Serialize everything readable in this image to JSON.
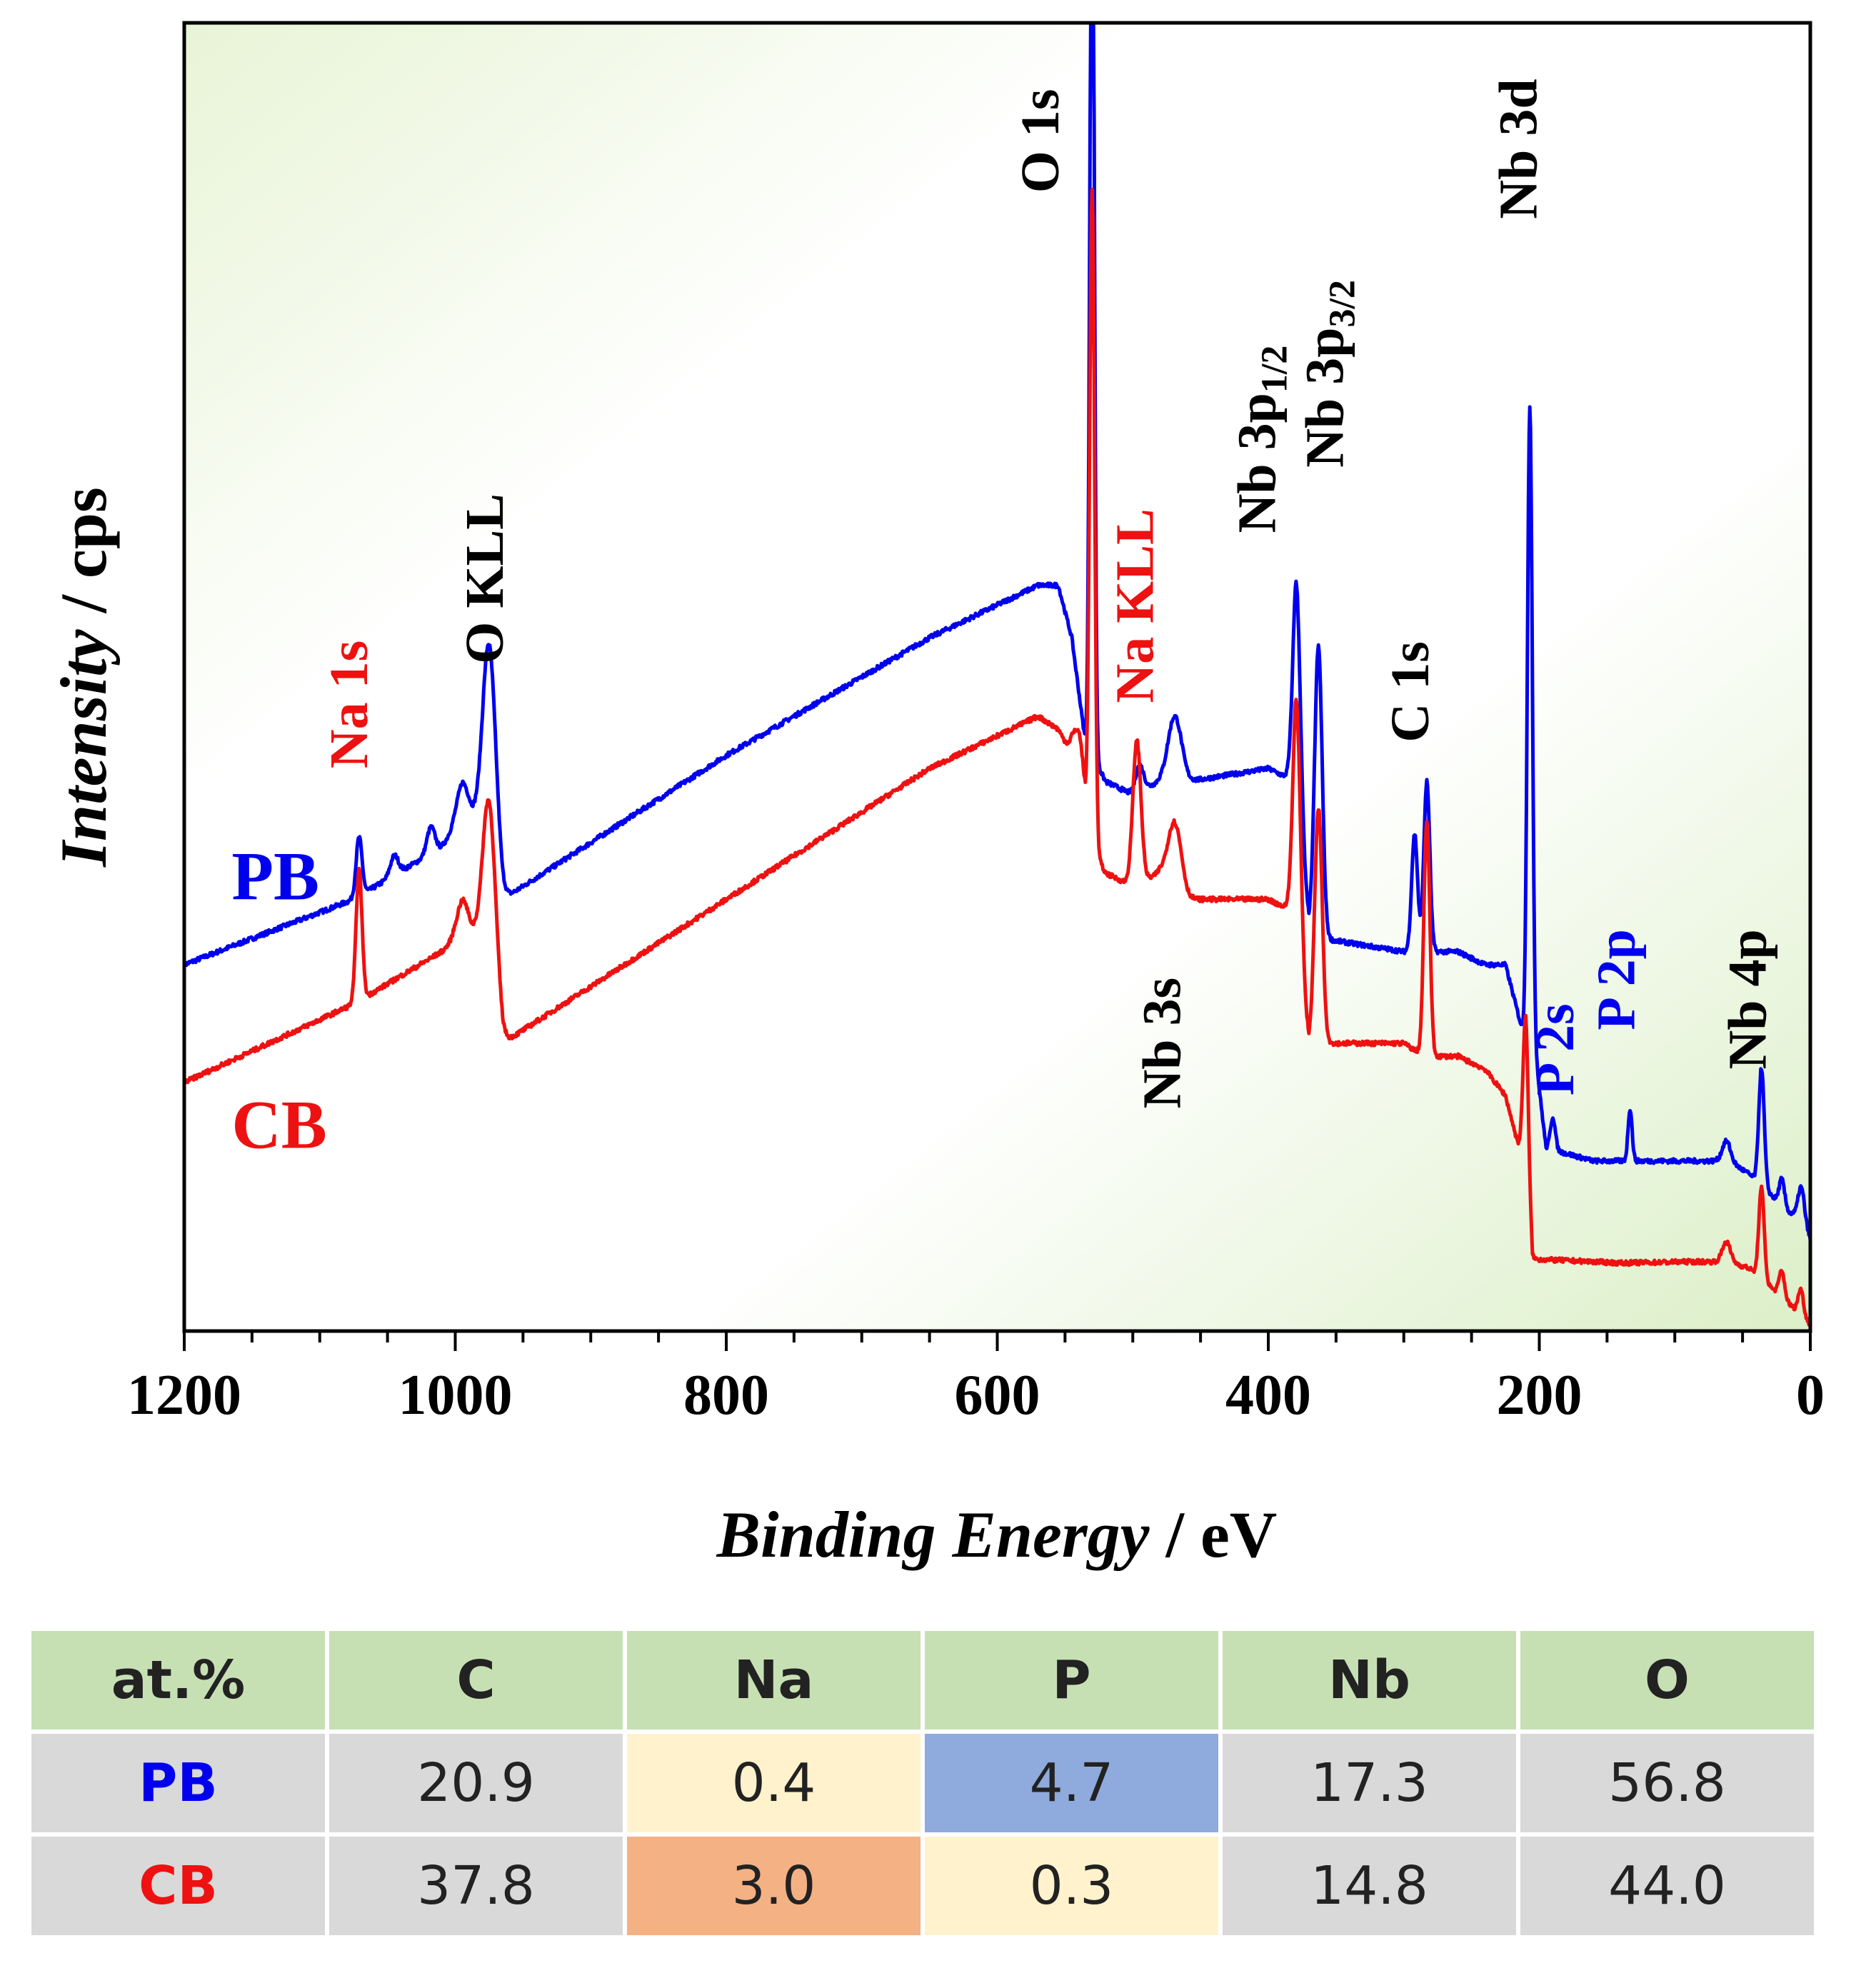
{
  "chart_data": {
    "type": "line",
    "xlabel_bold_italic": "Binding Energy",
    "xlabel_unit": " / eV",
    "ylabel_italic": "Intensity",
    "ylabel_unit": " / cps",
    "xlim": [
      1200,
      0
    ],
    "ylim": [
      0,
      100
    ],
    "x_ticks": [
      1200,
      1000,
      800,
      600,
      400,
      200,
      0
    ],
    "x_tick_labels": [
      "1200",
      "1000",
      "800",
      "600",
      "400",
      "200",
      "0"
    ],
    "colors": {
      "PB": "#0000ee",
      "CB": "#ee1111",
      "black": "#000000"
    },
    "series": [
      {
        "name": "PB",
        "color": "#0000ee",
        "baseline": [
          [
            1200,
            28
          ],
          [
            1075,
            33
          ],
          [
            1010,
            37
          ],
          [
            995,
            39
          ],
          [
            985,
            38
          ],
          [
            965,
            33
          ],
          [
            800,
            44
          ],
          [
            650,
            53
          ],
          [
            570,
            57
          ],
          [
            555,
            57
          ],
          [
            545,
            53
          ],
          [
            535,
            45
          ],
          [
            520,
            42
          ],
          [
            500,
            41
          ],
          [
            480,
            42
          ],
          [
            460,
            42
          ],
          [
            400,
            43
          ],
          [
            380,
            42
          ],
          [
            370,
            31
          ],
          [
            360,
            30
          ],
          [
            300,
            29
          ],
          [
            260,
            29
          ],
          [
            240,
            28
          ],
          [
            225,
            28
          ],
          [
            215,
            24
          ],
          [
            210,
            22
          ],
          [
            205,
            23
          ],
          [
            195,
            14
          ],
          [
            160,
            13
          ],
          [
            140,
            13
          ],
          [
            90,
            13
          ],
          [
            70,
            13
          ],
          [
            60,
            13
          ],
          [
            45,
            12
          ],
          [
            35,
            11
          ],
          [
            25,
            10
          ],
          [
            15,
            9
          ],
          [
            5,
            9
          ],
          [
            0,
            7
          ]
        ],
        "peaks": [
          {
            "x": 1071,
            "h": 4.5,
            "w": 2.2
          },
          {
            "x": 1045,
            "h": 1.5,
            "w": 3
          },
          {
            "x": 1018,
            "h": 2,
            "w": 3
          },
          {
            "x": 994,
            "h": 3,
            "w": 5
          },
          {
            "x": 975,
            "h": 17,
            "w": 5
          },
          {
            "x": 495,
            "h": 2,
            "w": 3
          },
          {
            "x": 469,
            "h": 5,
            "w": 5
          },
          {
            "x": 530,
            "h": 75,
            "w": 1.6
          },
          {
            "x": 379,
            "h": 16,
            "w": 2.8
          },
          {
            "x": 363,
            "h": 22,
            "w": 2.8
          },
          {
            "x": 292,
            "h": 9,
            "w": 2.2
          },
          {
            "x": 283,
            "h": 13,
            "w": 2.2
          },
          {
            "x": 207,
            "h": 48,
            "w": 1.8
          },
          {
            "x": 190,
            "h": 2.5,
            "w": 1.8
          },
          {
            "x": 133,
            "h": 4,
            "w": 1.5
          },
          {
            "x": 62,
            "h": 1.5,
            "w": 3
          },
          {
            "x": 36,
            "h": 9,
            "w": 2
          },
          {
            "x": 21,
            "h": 2,
            "w": 2
          },
          {
            "x": 7,
            "h": 2,
            "w": 2
          }
        ]
      },
      {
        "name": "CB",
        "color": "#ee1111",
        "baseline": [
          [
            1200,
            19
          ],
          [
            1075,
            25
          ],
          [
            1010,
            29
          ],
          [
            995,
            30
          ],
          [
            985,
            29
          ],
          [
            965,
            22
          ],
          [
            800,
            33
          ],
          [
            650,
            43
          ],
          [
            570,
            47
          ],
          [
            555,
            46
          ],
          [
            545,
            44
          ],
          [
            535,
            38
          ],
          [
            520,
            35
          ],
          [
            500,
            34
          ],
          [
            480,
            35
          ],
          [
            460,
            33
          ],
          [
            400,
            33
          ],
          [
            380,
            32
          ],
          [
            370,
            22
          ],
          [
            360,
            22
          ],
          [
            300,
            22
          ],
          [
            285,
            21
          ],
          [
            260,
            21
          ],
          [
            240,
            20
          ],
          [
            225,
            18
          ],
          [
            215,
            14
          ],
          [
            210,
            12
          ],
          [
            205,
            5.5
          ],
          [
            160,
            5.3
          ],
          [
            140,
            5.2
          ],
          [
            90,
            5.3
          ],
          [
            70,
            5.3
          ],
          [
            60,
            5.3
          ],
          [
            45,
            4.8
          ],
          [
            35,
            3.8
          ],
          [
            25,
            3
          ],
          [
            15,
            2
          ],
          [
            5,
            1
          ],
          [
            0,
            0.5
          ]
        ],
        "peaks": [
          {
            "x": 1071,
            "h": 10,
            "w": 2.2
          },
          {
            "x": 994,
            "h": 3,
            "w": 5
          },
          {
            "x": 975,
            "h": 15,
            "w": 5
          },
          {
            "x": 539,
            "h": 5,
            "w": 4
          },
          {
            "x": 530,
            "h": 50,
            "w": 1.8
          },
          {
            "x": 497,
            "h": 11,
            "w": 3
          },
          {
            "x": 469,
            "h": 5,
            "w": 5
          },
          {
            "x": 379,
            "h": 17,
            "w": 2.8
          },
          {
            "x": 363,
            "h": 18,
            "w": 2.8
          },
          {
            "x": 283,
            "h": 18,
            "w": 2.2
          },
          {
            "x": 210,
            "h": 12,
            "w": 2
          },
          {
            "x": 62,
            "h": 1.5,
            "w": 3
          },
          {
            "x": 36,
            "h": 7,
            "w": 2
          },
          {
            "x": 21,
            "h": 2,
            "w": 2
          },
          {
            "x": 7,
            "h": 2,
            "w": 2
          }
        ]
      }
    ],
    "annotations": [
      {
        "text": "Na 1s",
        "x": 1065,
        "y": 43,
        "color": "#ee1111",
        "rotate": true
      },
      {
        "text": "O KLL",
        "x": 965,
        "y": 51,
        "color": "#000000",
        "rotate": true
      },
      {
        "text": "O 1s",
        "x": 555,
        "y": 87,
        "color": "#000000",
        "rotate": true
      },
      {
        "text": "Na KLL",
        "x": 485,
        "y": 48,
        "color": "#ee1111",
        "rotate": true
      },
      {
        "text": "Nb 3s",
        "x": 465,
        "y": 17,
        "color": "#000000",
        "rotate": true
      },
      {
        "text": "Nb 3p",
        "sub": "1/2",
        "x": 395,
        "y": 61,
        "color": "#000000",
        "rotate": true
      },
      {
        "text": "Nb 3p",
        "sub": "3/2",
        "x": 345,
        "y": 66,
        "color": "#000000",
        "rotate": true
      },
      {
        "text": "C 1s",
        "x": 282,
        "y": 45,
        "color": "#000000",
        "rotate": true
      },
      {
        "text": "Nb 3d",
        "x": 202,
        "y": 85,
        "color": "#000000",
        "rotate": true
      },
      {
        "text": "P 2s",
        "x": 175,
        "y": 18,
        "color": "#0000ee",
        "rotate": true
      },
      {
        "text": "P 2p",
        "x": 130,
        "y": 23,
        "color": "#0000ee",
        "rotate": true
      },
      {
        "text": "Nb 4p",
        "x": 33,
        "y": 20,
        "color": "#000000",
        "rotate": true
      }
    ],
    "series_labels": [
      {
        "text": "PB",
        "x": 1165,
        "y": 33,
        "color": "#0000ee"
      },
      {
        "text": "CB",
        "x": 1165,
        "y": 14,
        "color": "#ee1111"
      }
    ]
  },
  "table": {
    "headers": [
      "at.%",
      "C",
      "Na",
      "P",
      "Nb",
      "O"
    ],
    "rows": [
      {
        "label": "PB",
        "label_color": "#0000ee",
        "values": [
          "20.9",
          "0.4",
          "4.7",
          "17.3",
          "56.8"
        ],
        "cell_colors": [
          "",
          "#fff2cc",
          "#8faadc",
          "",
          ""
        ]
      },
      {
        "label": "CB",
        "label_color": "#ee1111",
        "values": [
          "37.8",
          "3.0",
          "0.3",
          "14.8",
          "44.0"
        ],
        "cell_colors": [
          "",
          "#f4b183",
          "#fff2cc",
          "",
          ""
        ]
      }
    ]
  }
}
